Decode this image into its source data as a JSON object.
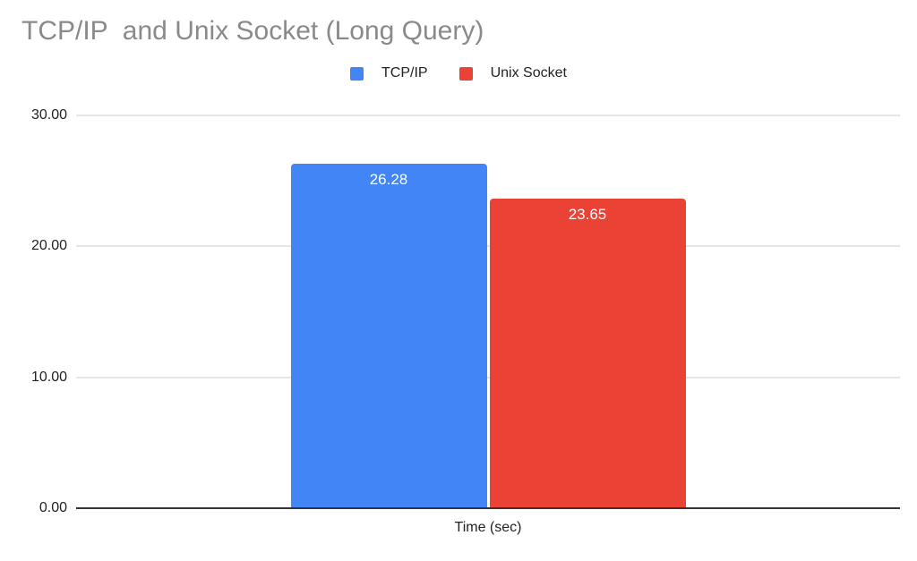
{
  "chart_data": {
    "type": "bar",
    "title": "TCP/IP  and Unix Socket (Long Query)",
    "categories": [
      "Time (sec)"
    ],
    "series": [
      {
        "name": "TCP/IP",
        "values": [
          26.28
        ],
        "label": "26.28",
        "color": "#4285F4"
      },
      {
        "name": "Unix Socket",
        "values": [
          23.65
        ],
        "label": "23.65",
        "color": "#EA4335"
      }
    ],
    "xlabel": "Time (sec)",
    "ylabel": "",
    "ylim": [
      0,
      30
    ],
    "yticks": [
      0,
      10,
      20,
      30
    ],
    "ytick_labels": [
      "0.00",
      "10.00",
      "20.00",
      "30.00"
    ],
    "grid": true,
    "legend_position": "top"
  },
  "colors": {
    "background": "#ffffff",
    "title_text": "#8a8a8a",
    "axis_text": "#222222",
    "gridline": "#e6e6e6",
    "axis_line": "#333333",
    "tcpip_bar": "#4285F4",
    "unix_socket_bar": "#EA4335",
    "bar_value_text": "#ffffff"
  }
}
